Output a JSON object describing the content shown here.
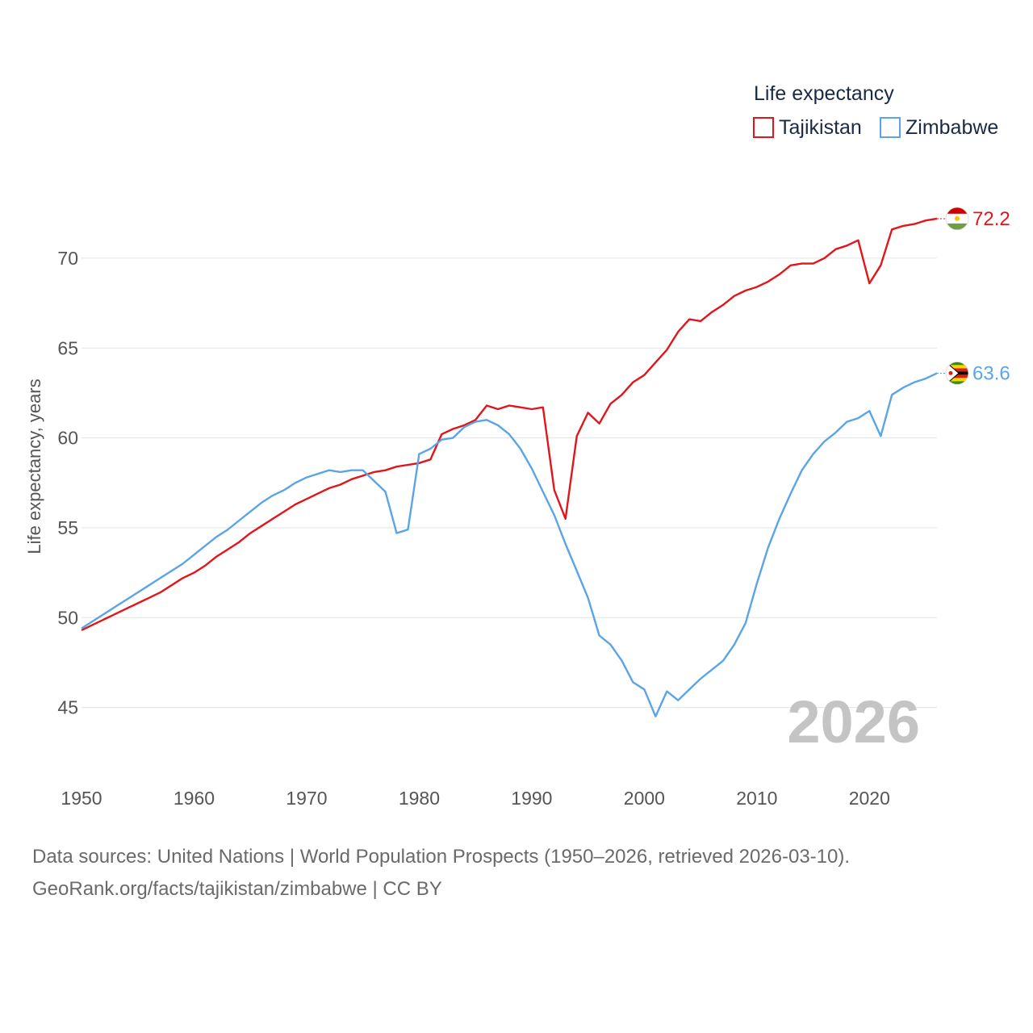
{
  "chart_data": {
    "type": "line",
    "title": "",
    "xlabel": "",
    "ylabel": "Life expectancy, years",
    "xlim": [
      1950,
      2026
    ],
    "ylim": [
      43.5,
      73.5
    ],
    "x_ticks": [
      1950,
      1960,
      1970,
      1980,
      1990,
      2000,
      2010,
      2020
    ],
    "y_ticks": [
      45,
      50,
      55,
      60,
      65,
      70
    ],
    "grid": true,
    "legend": {
      "title": "Life expectancy",
      "position": "top-right"
    },
    "current_year_label": "2026",
    "x": [
      1950,
      1951,
      1952,
      1953,
      1954,
      1955,
      1956,
      1957,
      1958,
      1959,
      1960,
      1961,
      1962,
      1963,
      1964,
      1965,
      1966,
      1967,
      1968,
      1969,
      1970,
      1971,
      1972,
      1973,
      1974,
      1975,
      1976,
      1977,
      1978,
      1979,
      1980,
      1981,
      1982,
      1983,
      1984,
      1985,
      1986,
      1987,
      1988,
      1989,
      1990,
      1991,
      1992,
      1993,
      1994,
      1995,
      1996,
      1997,
      1998,
      1999,
      2000,
      2001,
      2002,
      2003,
      2004,
      2005,
      2006,
      2007,
      2008,
      2009,
      2010,
      2011,
      2012,
      2013,
      2014,
      2015,
      2016,
      2017,
      2018,
      2019,
      2020,
      2021,
      2022,
      2023,
      2024,
      2025,
      2026
    ],
    "series": [
      {
        "name": "Tajikistan",
        "color": "#e0161b",
        "end_label": "72.2",
        "flag": "tajikistan-flag",
        "values": [
          49.3,
          49.6,
          49.9,
          50.2,
          50.5,
          50.8,
          51.1,
          51.4,
          51.8,
          52.2,
          52.5,
          52.9,
          53.4,
          53.8,
          54.2,
          54.7,
          55.1,
          55.5,
          55.9,
          56.3,
          56.6,
          56.9,
          57.2,
          57.4,
          57.7,
          57.9,
          58.1,
          58.2,
          58.4,
          58.5,
          58.6,
          58.8,
          60.2,
          60.5,
          60.7,
          61.0,
          61.8,
          61.6,
          61.8,
          61.7,
          61.6,
          61.7,
          57.1,
          55.5,
          60.1,
          61.4,
          60.8,
          61.9,
          62.4,
          63.1,
          63.5,
          64.2,
          64.9,
          65.9,
          66.6,
          66.5,
          67.0,
          67.4,
          67.9,
          68.2,
          68.4,
          68.7,
          69.1,
          69.6,
          69.7,
          69.7,
          70.0,
          70.5,
          70.7,
          71.0,
          68.6,
          69.6,
          71.6,
          71.8,
          71.9,
          72.1,
          72.2
        ]
      },
      {
        "name": "Zimbabwe",
        "color": "#5ba4e6",
        "end_label": "63.6",
        "flag": "zimbabwe-flag",
        "values": [
          49.4,
          49.8,
          50.2,
          50.6,
          51.0,
          51.4,
          51.8,
          52.2,
          52.6,
          53.0,
          53.5,
          54.0,
          54.5,
          54.9,
          55.4,
          55.9,
          56.4,
          56.8,
          57.1,
          57.5,
          57.8,
          58.0,
          58.2,
          58.1,
          58.2,
          58.2,
          57.6,
          57.0,
          54.7,
          54.9,
          59.1,
          59.4,
          59.9,
          60.0,
          60.6,
          60.9,
          61.0,
          60.7,
          60.2,
          59.4,
          58.3,
          57.0,
          55.7,
          54.1,
          52.6,
          51.1,
          49.0,
          48.5,
          47.6,
          46.4,
          46.0,
          44.5,
          45.9,
          45.4,
          46.0,
          46.6,
          47.1,
          47.6,
          48.5,
          49.7,
          51.9,
          53.9,
          55.5,
          56.9,
          58.2,
          59.1,
          59.8,
          60.3,
          60.9,
          61.1,
          61.5,
          60.1,
          62.4,
          62.8,
          63.1,
          63.3,
          63.6
        ]
      }
    ]
  },
  "footer": {
    "source_line": "Data sources: United Nations | World Population Prospects (1950–2026, retrieved 2026-03-10).",
    "license_line": "GeoRank.org/facts/tajikistan/zimbabwe | CC BY"
  }
}
